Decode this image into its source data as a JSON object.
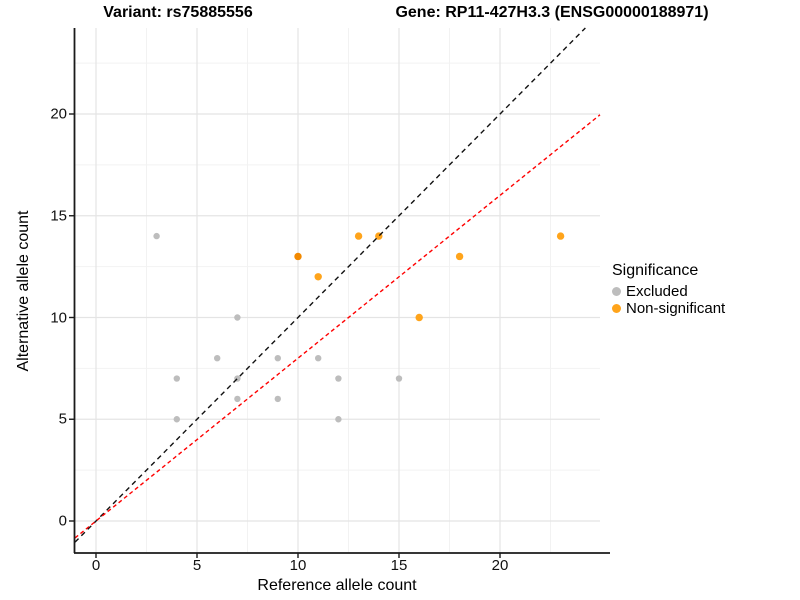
{
  "titles": {
    "variant": "Variant: rs75885556",
    "gene": "Gene: RP11-427H3.3 (ENSG00000188971)"
  },
  "chart_data": {
    "type": "scatter",
    "xlabel": "Reference allele count",
    "ylabel": "Alternative allele count",
    "x_ticks": [
      0,
      5,
      10,
      15,
      20
    ],
    "y_ticks": [
      0,
      5,
      10,
      15,
      20
    ],
    "grid_minor": [
      2.5,
      7.5,
      12.5,
      17.5,
      22.5
    ],
    "xlim": [
      -1.1,
      25.0
    ],
    "ylim": [
      -1.6,
      24.2
    ],
    "grid": true,
    "colors": {
      "excluded": "#BDBDBD",
      "non_significant": "#FFA41B",
      "non_significant_dark": "#F28900",
      "identity_line": "#111111",
      "fit_line": "#FF0000",
      "grid_major": "#E4E4E4",
      "grid_minor": "#F2F2F2",
      "axis": "#1A1A1A"
    },
    "series": [
      {
        "name": "Excluded",
        "color": "#BDBDBD",
        "marker_radius": 3.2,
        "points": [
          [
            3,
            14
          ],
          [
            7,
            10
          ],
          [
            6,
            8
          ],
          [
            9,
            8
          ],
          [
            11,
            8
          ],
          [
            4,
            7
          ],
          [
            7,
            7
          ],
          [
            12,
            7
          ],
          [
            15,
            7
          ],
          [
            7,
            6
          ],
          [
            9,
            6
          ],
          [
            4,
            5
          ],
          [
            12,
            5
          ]
        ]
      },
      {
        "name": "Non-significant",
        "color": "#FFA41B",
        "marker_radius": 3.7,
        "points": [
          [
            10,
            13,
            "#F28900"
          ],
          [
            11,
            12
          ],
          [
            13,
            14
          ],
          [
            14,
            14
          ],
          [
            16,
            10
          ],
          [
            18,
            13
          ],
          [
            23,
            14
          ]
        ]
      }
    ],
    "lines": [
      {
        "name": "identity",
        "color": "#111111",
        "dash": "5,4",
        "width": 1.4,
        "slope": 1.0,
        "intercept": 0
      },
      {
        "name": "fit",
        "color": "#FF0000",
        "dash": "4,3",
        "width": 1.4,
        "slope": 0.8,
        "intercept": 0
      }
    ],
    "legend": {
      "title": "Significance",
      "position": "right",
      "entries": [
        {
          "label": "Excluded",
          "color": "#BDBDBD"
        },
        {
          "label": "Non-significant",
          "color": "#FFA41B"
        }
      ]
    }
  }
}
